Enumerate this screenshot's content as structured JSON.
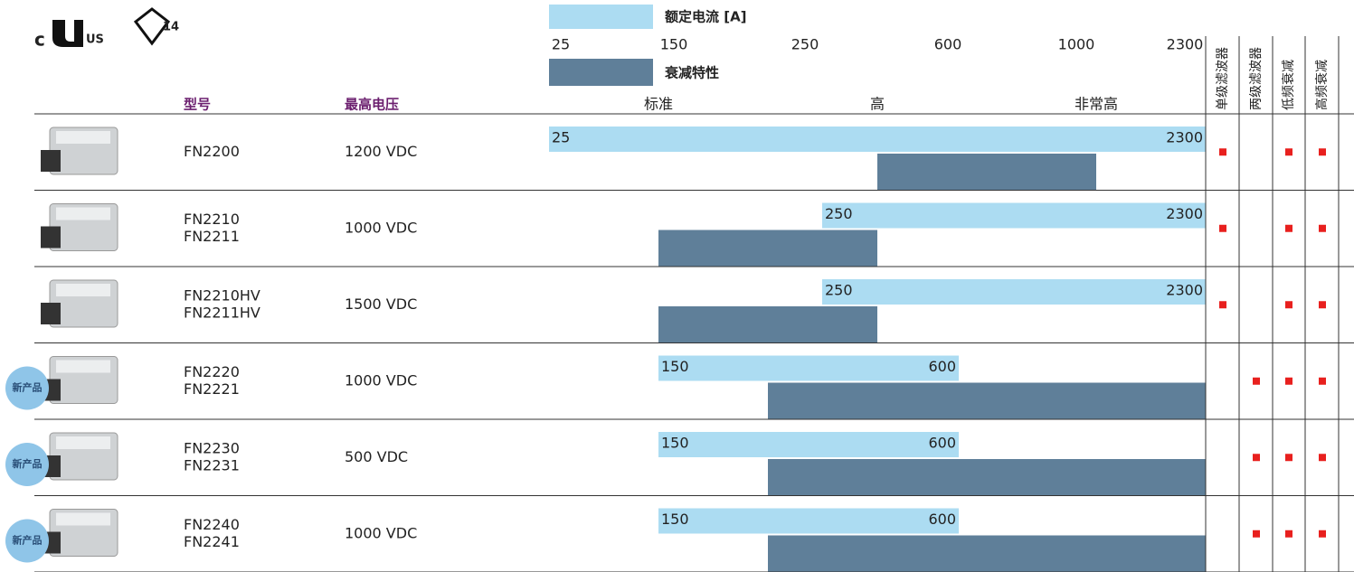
{
  "header": {
    "logo_c": "c",
    "logo_us": "US",
    "logo_enec": "14"
  },
  "legend": {
    "current": "额定电流 [A]",
    "attenuation": "衰减特性"
  },
  "columns": {
    "model": "型号",
    "voltage": "最高电压"
  },
  "current_ticks": [
    25,
    150,
    250,
    600,
    1000,
    2300
  ],
  "attenuation_lim": [
    0,
    6
  ],
  "attenuation_ticks": [
    {
      "value": 1,
      "label": "标准"
    },
    {
      "value": 3,
      "label": "高"
    },
    {
      "value": 5,
      "label": "非常高"
    }
  ],
  "feature_headers": [
    "单级滤波器",
    "两级滤波器",
    "低频衰减",
    "高频衰减"
  ],
  "colors": {
    "current": "#acdcf2",
    "attenuation": "#5f7f99",
    "feature": "#e8201e",
    "header": "#6b1e6e",
    "badge": "#8fc5e8"
  },
  "rows": [
    {
      "models": [
        "FN2200"
      ],
      "voltage": "1200 VDC",
      "current": [
        25,
        2300
      ],
      "attenuation": [
        3,
        5
      ],
      "features": [
        true,
        false,
        true,
        true
      ]
    },
    {
      "models": [
        "FN2210",
        "FN2211"
      ],
      "voltage": "1000 VDC",
      "current": [
        250,
        2300
      ],
      "attenuation": [
        1,
        3
      ],
      "features": [
        true,
        false,
        true,
        true
      ]
    },
    {
      "models": [
        "FN2210HV",
        "FN2211HV"
      ],
      "voltage": "1500 VDC",
      "current": [
        250,
        2300
      ],
      "attenuation": [
        1,
        3
      ],
      "features": [
        true,
        false,
        true,
        true
      ]
    },
    {
      "badge": "新产品",
      "models": [
        "FN2220",
        "FN2221"
      ],
      "voltage": "1000 VDC",
      "current": [
        150,
        600
      ],
      "attenuation": [
        2,
        6
      ],
      "features": [
        false,
        true,
        true,
        true
      ]
    },
    {
      "badge": "新产品",
      "models": [
        "FN2230",
        "FN2231"
      ],
      "voltage": "500 VDC",
      "current": [
        150,
        600
      ],
      "attenuation": [
        2,
        6
      ],
      "features": [
        false,
        true,
        true,
        true
      ]
    },
    {
      "badge": "新产品",
      "models": [
        "FN2240",
        "FN2241"
      ],
      "voltage": "1000 VDC",
      "current": [
        150,
        600
      ],
      "attenuation": [
        2,
        6
      ],
      "features": [
        false,
        true,
        true,
        true
      ]
    }
  ]
}
